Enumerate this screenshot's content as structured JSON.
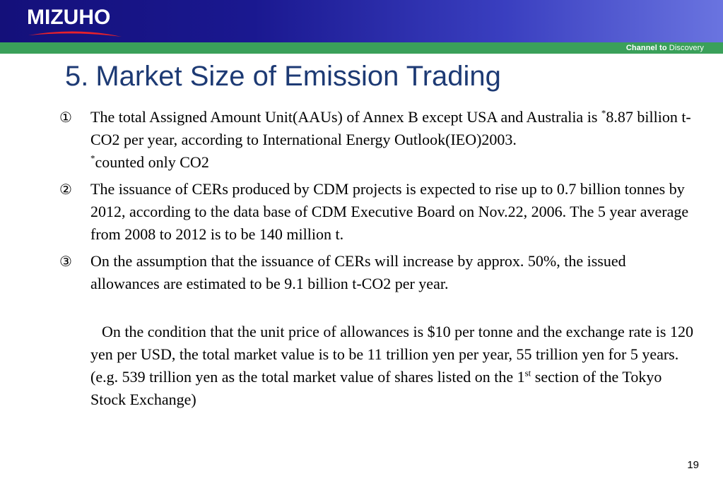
{
  "header": {
    "logo_text": "MIZUHO",
    "tagline_bold": "Channel to",
    "tagline_rest": " Discovery",
    "colors": {
      "navy": "#1a1890",
      "green": "#3aa05a",
      "swoosh": "#e8212b",
      "title": "#1d3a74"
    }
  },
  "slide": {
    "title_number": "5.",
    "title": "Market Size of Emission Trading",
    "page_number": "19"
  },
  "items": [
    {
      "marker": "①",
      "text_a": "The total Assigned Amount Unit(AAUs) of Annex B except USA and Australia is ",
      "asterisk": "*",
      "text_b": "8.87 billion t-CO2 per year, according to International Energy Outlook(IEO)2003.",
      "note_asterisk": "*",
      "note": "counted only CO2"
    },
    {
      "marker": "②",
      "text": "The issuance of CERs produced by CDM projects is expected to rise up to 0.7 billion tonnes by 2012, according to the data base of CDM Executive Board on Nov.22, 2006. The 5 year average from 2008 to 2012 is to be 140 million t."
    },
    {
      "marker": "③",
      "text": "On the assumption that the issuance of CERs will increase by approx. 50%, the issued allowances are estimated to be 9.1 billion t-CO2 per year."
    }
  ],
  "paragraph": {
    "text_a": "On the condition that the unit price of allowances is $10 per tonne and the exchange rate is 120 yen per USD, the total market value is to be 11 trillion yen per year, 55 trillion yen for 5 years.  (e.g. 539 trillion yen as the total market value of shares listed on the 1",
    "sup": "st",
    "text_b": " section of the Tokyo Stock Exchange)"
  }
}
